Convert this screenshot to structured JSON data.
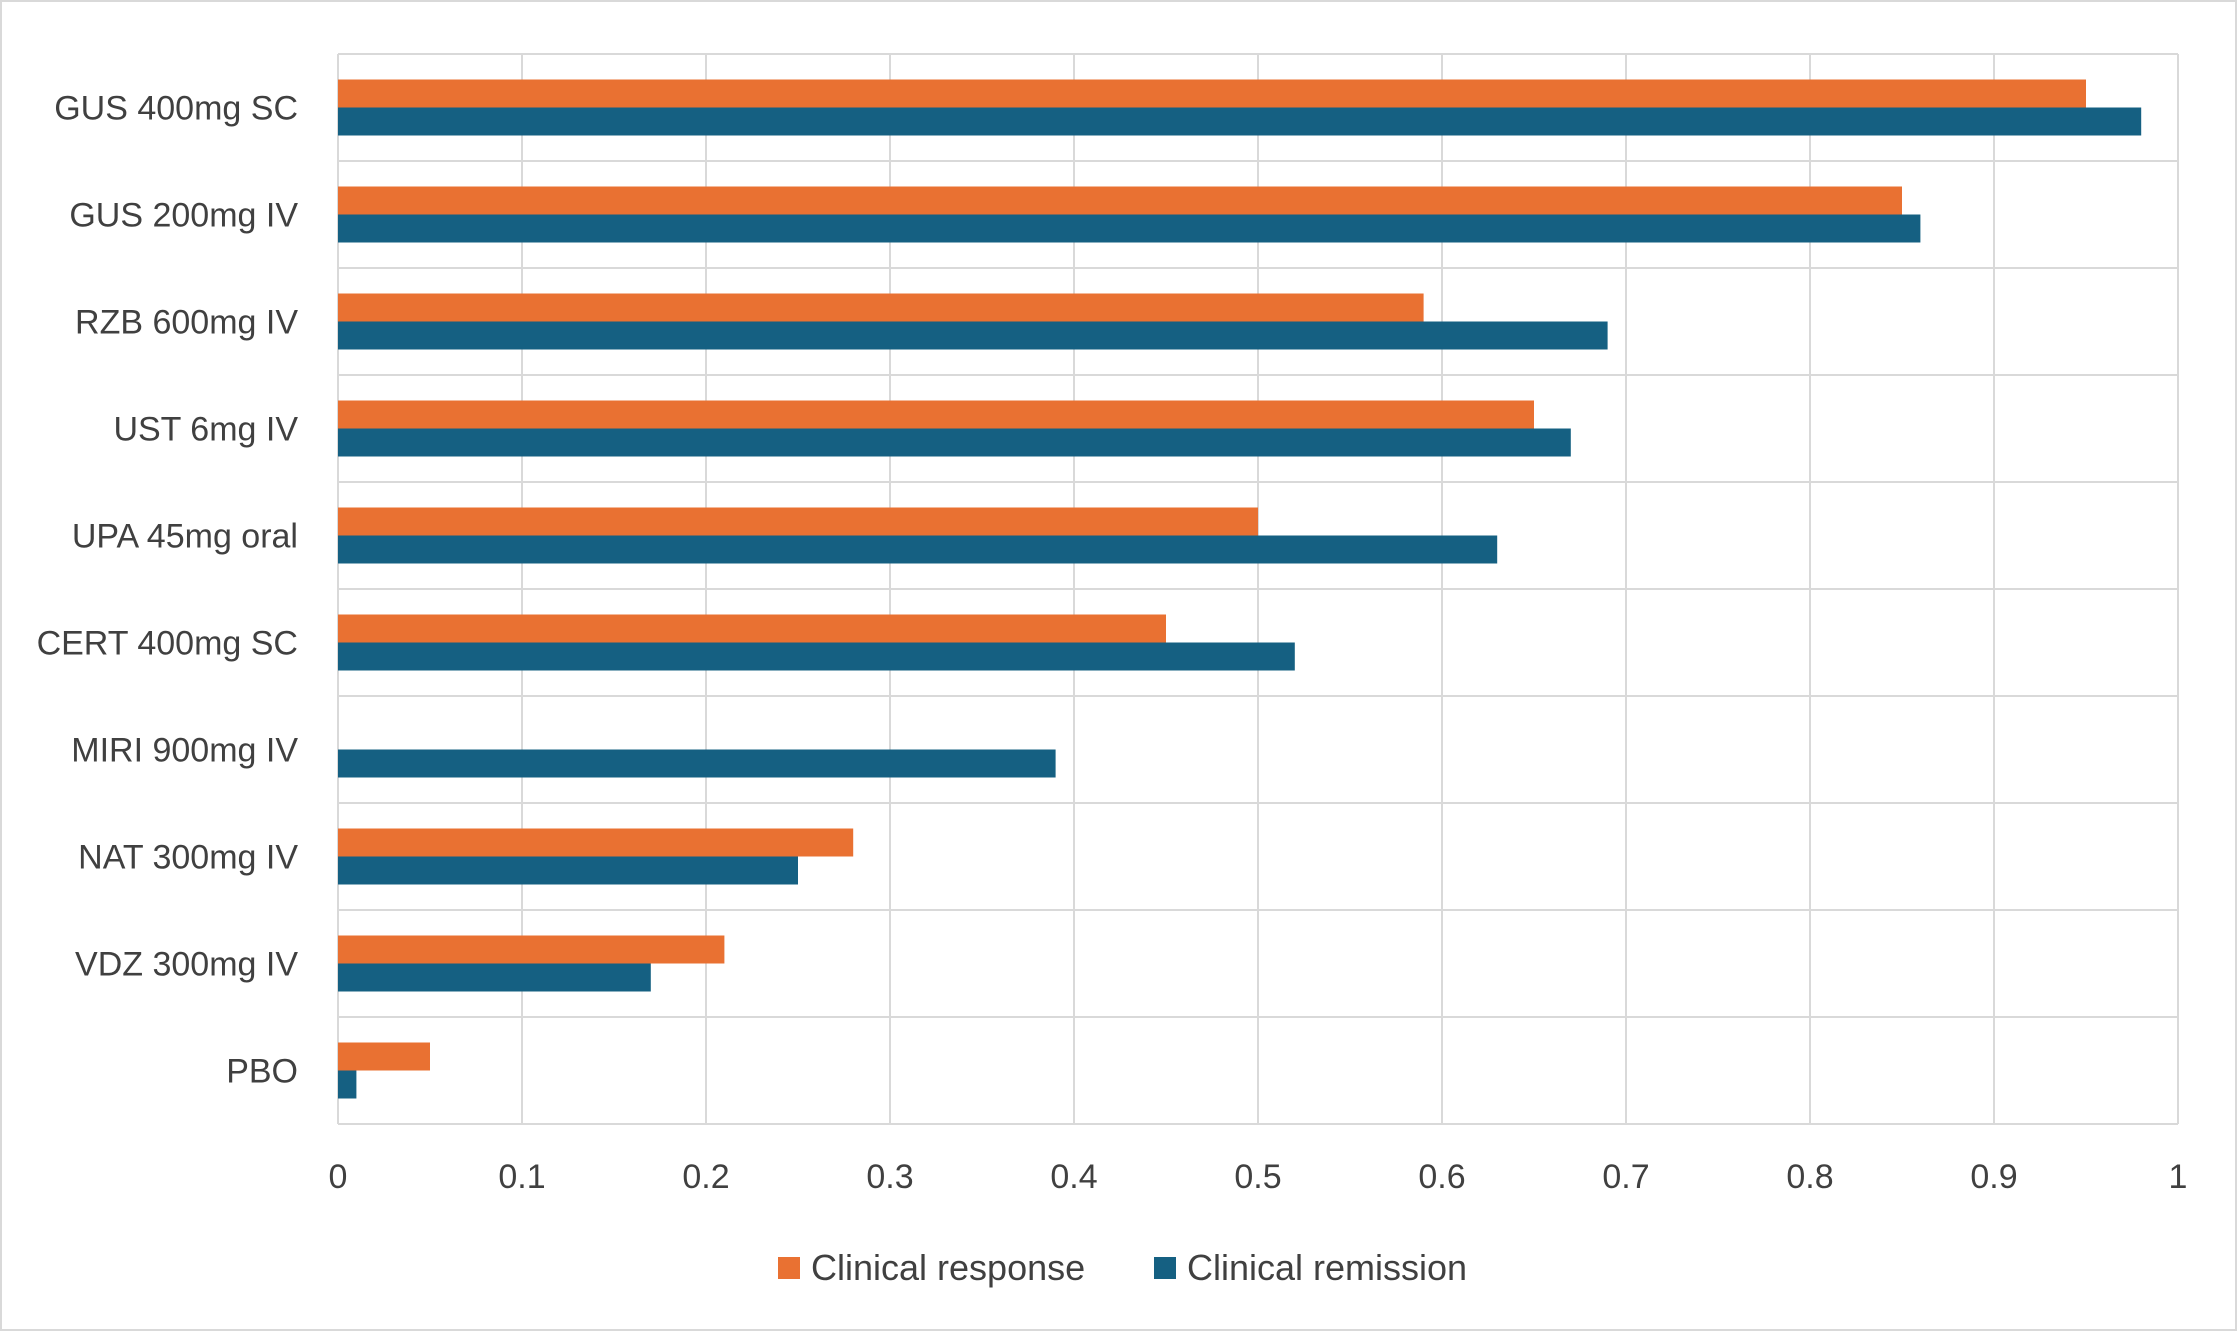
{
  "chart_data": {
    "type": "bar",
    "orientation": "horizontal",
    "categories": [
      "GUS 400mg SC",
      "GUS 200mg IV",
      "RZB 600mg IV",
      "UST 6mg IV",
      "UPA 45mg oral",
      "CERT 400mg SC",
      "MIRI 900mg IV",
      "NAT 300mg IV",
      "VDZ 300mg IV",
      "PBO"
    ],
    "series": [
      {
        "name": "Clinical response",
        "color": "#E97132",
        "values": [
          0.95,
          0.85,
          0.59,
          0.65,
          0.5,
          0.45,
          null,
          0.28,
          0.21,
          0.05
        ]
      },
      {
        "name": "Clinical remission",
        "color": "#156082",
        "values": [
          0.98,
          0.86,
          0.69,
          0.67,
          0.63,
          0.52,
          0.39,
          0.25,
          0.17,
          0.01
        ]
      }
    ],
    "xlim": [
      0,
      1
    ],
    "xticks": [
      "0",
      "0.1",
      "0.2",
      "0.3",
      "0.4",
      "0.5",
      "0.6",
      "0.7",
      "0.8",
      "0.9",
      "1"
    ],
    "title": "",
    "xlabel": "",
    "ylabel": "",
    "grid": true,
    "legend_position": "bottom"
  }
}
